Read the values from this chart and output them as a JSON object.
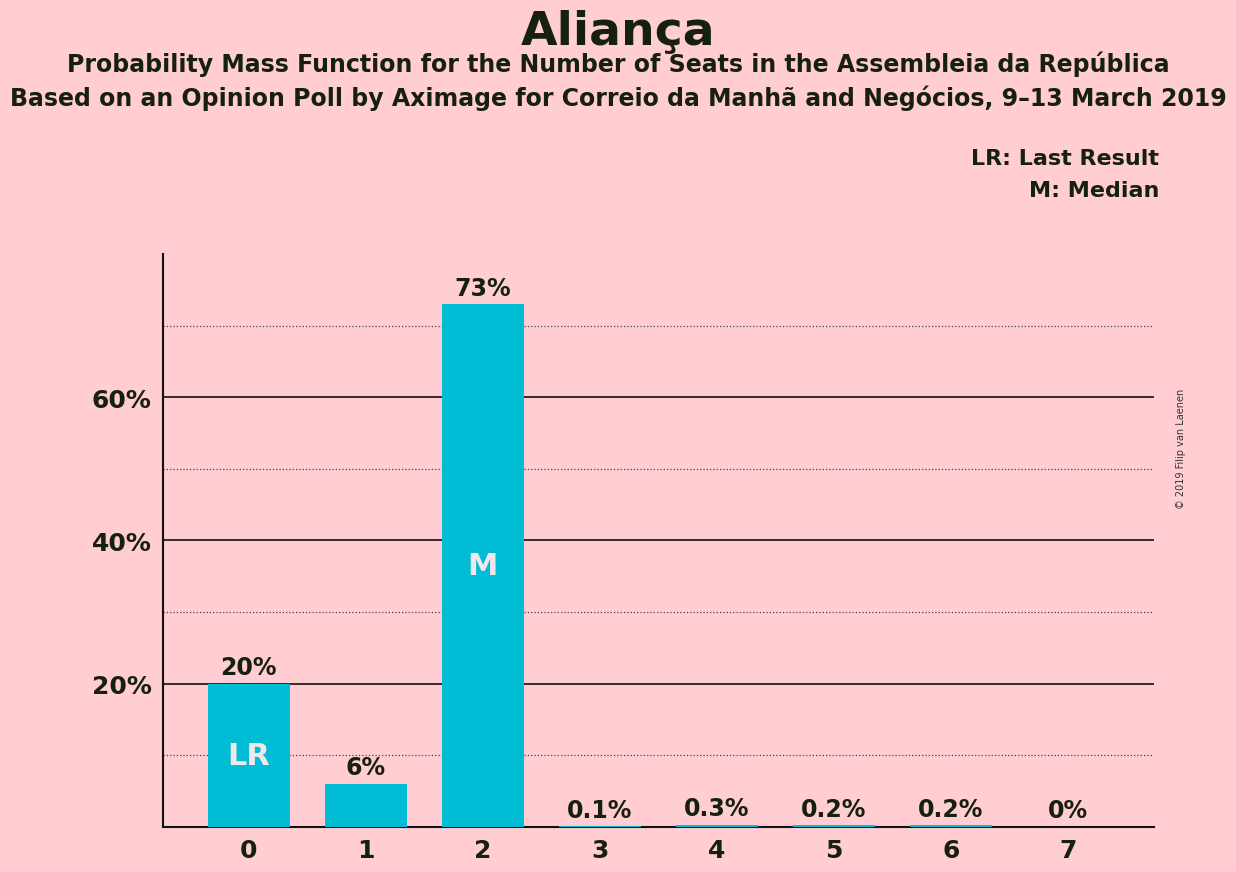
{
  "title": "Aliança",
  "subtitle1": "Probability Mass Function for the Number of Seats in the Assembleia da República",
  "subtitle2": "Based on an Opinion Poll by Aximage for Correio da Manhã and Negócios, 9–13 March 2019",
  "copyright": "© 2019 Filip van Laenen",
  "categories": [
    0,
    1,
    2,
    3,
    4,
    5,
    6,
    7
  ],
  "values": [
    0.2,
    0.06,
    0.73,
    0.001,
    0.003,
    0.002,
    0.002,
    0.0
  ],
  "value_labels": [
    "20%",
    "6%",
    "73%",
    "0.1%",
    "0.3%",
    "0.2%",
    "0.2%",
    "0%"
  ],
  "bar_labels": [
    "LR",
    "",
    "M",
    "",
    "",
    "",
    "",
    ""
  ],
  "bar_color": "#00BCD4",
  "background_color": "#FFCDD2",
  "text_color": "#152010",
  "bar_label_color_light": "#f0e8ec",
  "ylim": [
    0,
    0.8
  ],
  "yticks": [
    0.0,
    0.2,
    0.4,
    0.6
  ],
  "ytick_labels": [
    "",
    "20%",
    "40%",
    "60%"
  ],
  "solid_lines": [
    0.2,
    0.4,
    0.6
  ],
  "dotted_lines": [
    0.1,
    0.3,
    0.5,
    0.7
  ],
  "legend_lr": "LR: Last Result",
  "legend_m": "M: Median",
  "title_fontsize": 34,
  "subtitle1_fontsize": 17,
  "subtitle2_fontsize": 17,
  "legend_fontsize": 16,
  "ytick_fontsize": 18,
  "xtick_fontsize": 18,
  "value_label_fontsize": 17,
  "bar_label_fontsize": 22
}
